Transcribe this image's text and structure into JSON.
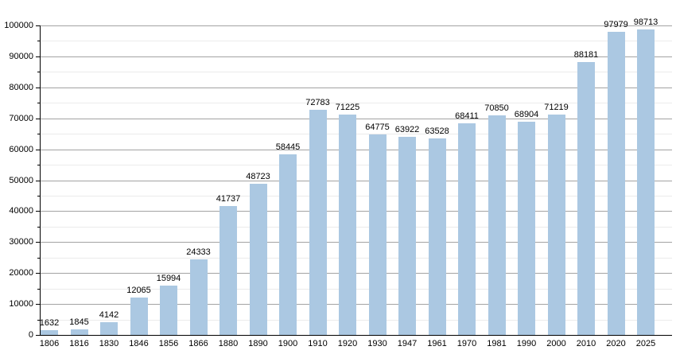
{
  "chart_data": {
    "type": "bar",
    "title": "",
    "xlabel": "",
    "ylabel": "",
    "categories": [
      "1806",
      "1816",
      "1830",
      "1846",
      "1856",
      "1866",
      "1880",
      "1890",
      "1900",
      "1910",
      "1920",
      "1930",
      "1947",
      "1961",
      "1970",
      "1981",
      "1990",
      "2000",
      "2010",
      "2020",
      "2025"
    ],
    "values": [
      1632,
      1845,
      4142,
      12065,
      15994,
      24333,
      41737,
      48723,
      58445,
      72783,
      71225,
      64775,
      63922,
      63528,
      68411,
      70850,
      68904,
      71219,
      88181,
      97979,
      98713
    ],
    "ylim": [
      0,
      100000
    ],
    "ytick_step": 10000,
    "yminor_step": 5000,
    "ytick_labels": [
      "0",
      "10000",
      "20000",
      "30000",
      "40000",
      "50000",
      "60000",
      "70000",
      "80000",
      "90000",
      "100000"
    ],
    "grid": true,
    "legend_position": "none",
    "value_labels_shown": true,
    "colors": {
      "bar_fill": "#abc8e2",
      "grid_major": "#a3a3a3",
      "grid_minor": "#ebebeb",
      "axis": "#000000",
      "text": "#000000"
    }
  }
}
